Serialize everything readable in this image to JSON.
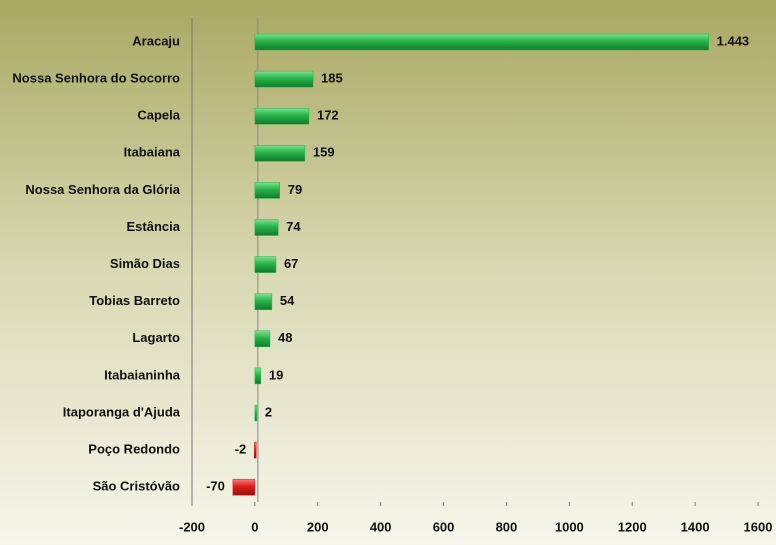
{
  "chart_data": {
    "type": "bar",
    "orientation": "horizontal",
    "categories": [
      "Aracaju",
      "Nossa Senhora do Socorro",
      "Capela",
      "Itabaiana",
      "Nossa Senhora da Glória",
      "Estância",
      "Simão Dias",
      "Tobias Barreto",
      "Lagarto",
      "Itabaianinha",
      "Itaporanga d'Ajuda",
      "Poço Redondo",
      "São Cristóvão"
    ],
    "values": [
      1443,
      185,
      172,
      159,
      79,
      74,
      67,
      54,
      48,
      19,
      2,
      -2,
      -70
    ],
    "value_labels": [
      "1.443",
      "185",
      "172",
      "159",
      "79",
      "74",
      "67",
      "54",
      "48",
      "19",
      "2",
      "-2",
      "-70"
    ],
    "color": "#26b34a",
    "negative_color": "#e01b1b",
    "xlim": [
      -200,
      1600
    ],
    "xticks": [
      -200,
      0,
      200,
      400,
      600,
      800,
      1000,
      1200,
      1400,
      1600
    ]
  }
}
